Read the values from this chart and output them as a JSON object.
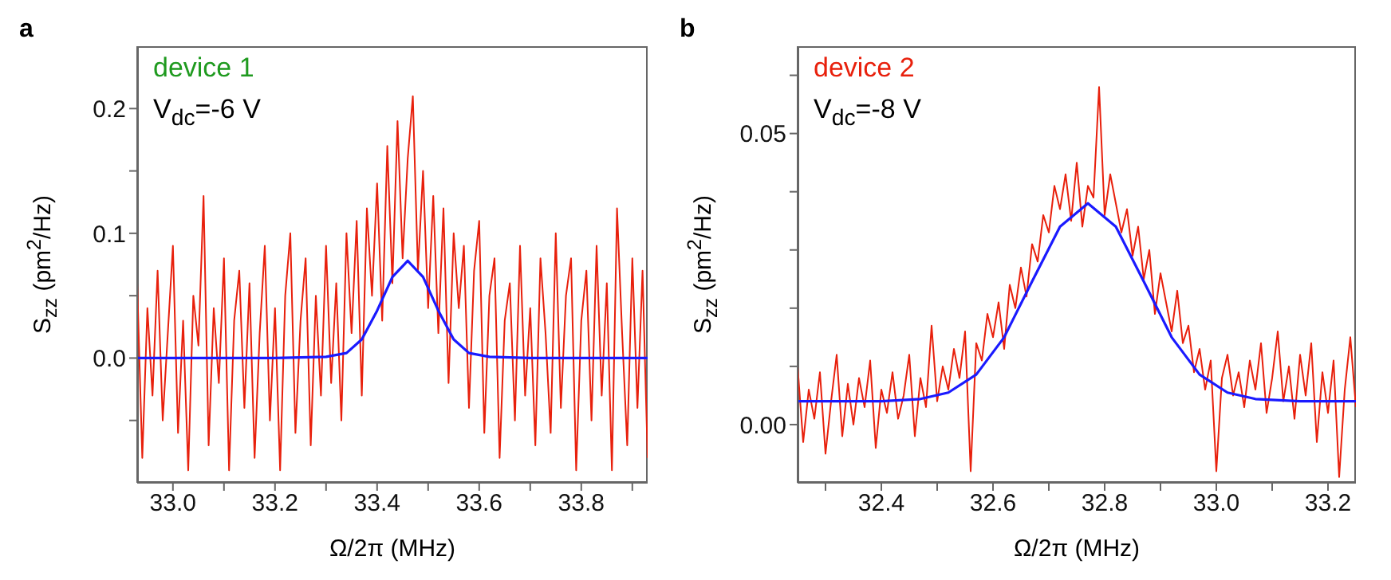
{
  "chart_data": [
    {
      "type": "line",
      "title": "a",
      "xlabel": "Ω/2π (MHz)",
      "ylabel": "S$_{zz}$ (pm$^{2}$/Hz)",
      "annotations": [
        "device 1",
        "V$_{dc}$=-6 V"
      ],
      "xlim": [
        32.93,
        33.93
      ],
      "xticks": [
        {
          "value": 33,
          "label": "33.0"
        },
        {
          "value": 33.1,
          "label": null
        },
        {
          "value": 33.2,
          "label": "33.2"
        },
        {
          "value": 33.3,
          "label": null
        },
        {
          "value": 33.4,
          "label": "33.4"
        },
        {
          "value": 33.5,
          "label": null
        },
        {
          "value": 33.6,
          "label": "33.6"
        },
        {
          "value": 33.7,
          "label": null
        },
        {
          "value": 33.8,
          "label": "33.8"
        },
        {
          "value": 33.9,
          "label": null
        }
      ],
      "ylim": [
        -0.1,
        0.25
      ],
      "yticks": [
        {
          "value": -0.05,
          "label": null
        },
        {
          "value": 0,
          "label": "0.0"
        },
        {
          "value": 0.05,
          "label": null
        },
        {
          "value": 0.1,
          "label": "0.1"
        },
        {
          "value": 0.15,
          "label": null
        },
        {
          "value": 0.2,
          "label": "0.2"
        }
      ],
      "grid": false,
      "marker": "none",
      "line_style": "solid",
      "series": [
        {
          "color": "#e8200c",
          "x": [
            32.93,
            32.94,
            32.95,
            32.96,
            32.97,
            32.98,
            32.99,
            33.0,
            33.01,
            33.02,
            33.03,
            33.04,
            33.05,
            33.06,
            33.07,
            33.08,
            33.09,
            33.1,
            33.11,
            33.12,
            33.13,
            33.14,
            33.15,
            33.16,
            33.17,
            33.18,
            33.19,
            33.2,
            33.21,
            33.22,
            33.23,
            33.24,
            33.25,
            33.26,
            33.27,
            33.28,
            33.29,
            33.3,
            33.31,
            33.32,
            33.33,
            33.34,
            33.35,
            33.36,
            33.37,
            33.38,
            33.39,
            33.4,
            33.41,
            33.42,
            33.43,
            33.44,
            33.45,
            33.46,
            33.47,
            33.48,
            33.49,
            33.5,
            33.51,
            33.52,
            33.53,
            33.54,
            33.55,
            33.56,
            33.57,
            33.58,
            33.59,
            33.6,
            33.61,
            33.62,
            33.63,
            33.64,
            33.65,
            33.66,
            33.67,
            33.68,
            33.69,
            33.7,
            33.71,
            33.72,
            33.73,
            33.74,
            33.75,
            33.76,
            33.77,
            33.78,
            33.79,
            33.8,
            33.81,
            33.82,
            33.83,
            33.84,
            33.85,
            33.86,
            33.87,
            33.88,
            33.89,
            33.9,
            33.91,
            33.92,
            33.93
          ],
          "values": [
            0.06,
            -0.08,
            0.04,
            -0.03,
            0.07,
            -0.05,
            0.02,
            0.09,
            -0.06,
            0.03,
            -0.09,
            0.05,
            0.01,
            0.13,
            -0.07,
            0.04,
            -0.02,
            0.08,
            -0.09,
            0.03,
            0.07,
            -0.04,
            0.06,
            -0.08,
            0.02,
            0.09,
            -0.05,
            0.04,
            -0.09,
            0.05,
            0.1,
            -0.06,
            0.03,
            0.08,
            -0.07,
            0.05,
            -0.03,
            0.09,
            -0.02,
            0.06,
            -0.05,
            0.1,
            0.02,
            0.11,
            -0.03,
            0.12,
            0.05,
            0.14,
            0.03,
            0.17,
            0.06,
            0.19,
            0.08,
            0.16,
            0.21,
            0.07,
            0.15,
            0.04,
            0.13,
            0.02,
            0.12,
            -0.02,
            0.1,
            0.04,
            0.09,
            -0.04,
            0.07,
            0.11,
            -0.06,
            0.05,
            0.08,
            -0.08,
            0.03,
            0.06,
            -0.05,
            0.09,
            -0.03,
            0.04,
            -0.07,
            0.08,
            0.02,
            -0.06,
            0.1,
            -0.04,
            0.05,
            0.08,
            -0.09,
            0.03,
            0.07,
            -0.05,
            0.09,
            -0.03,
            0.06,
            -0.09,
            0.12,
            0.02,
            -0.07,
            0.08,
            -0.04,
            0.07,
            -0.08
          ]
        },
        {
          "color": "#1a1aff",
          "x": [
            32.93,
            33.2,
            33.3,
            33.34,
            33.37,
            33.4,
            33.43,
            33.46,
            33.49,
            33.52,
            33.55,
            33.58,
            33.62,
            33.7,
            33.93
          ],
          "values": [
            0,
            0,
            0.001,
            0.004,
            0.015,
            0.038,
            0.065,
            0.078,
            0.065,
            0.038,
            0.015,
            0.004,
            0.001,
            0,
            0
          ]
        }
      ]
    },
    {
      "type": "line",
      "title": "b",
      "xlabel": "Ω/2π (MHz)",
      "ylabel": "S$_{zz}$ (pm$^{2}$/Hz)",
      "annotations": [
        "device 2",
        "V$_{dc}$=-8 V"
      ],
      "xlim": [
        32.25,
        33.25
      ],
      "xticks": [
        {
          "value": 32.3,
          "label": null
        },
        {
          "value": 32.4,
          "label": "32.4"
        },
        {
          "value": 32.5,
          "label": null
        },
        {
          "value": 32.6,
          "label": "32.6"
        },
        {
          "value": 32.7,
          "label": null
        },
        {
          "value": 32.8,
          "label": "32.8"
        },
        {
          "value": 32.9,
          "label": null
        },
        {
          "value": 33,
          "label": "33.0"
        },
        {
          "value": 33.1,
          "label": null
        },
        {
          "value": 33.2,
          "label": "33.2"
        }
      ],
      "ylim": [
        -0.01,
        0.065
      ],
      "yticks": [
        {
          "value": 0,
          "label": "0.00"
        },
        {
          "value": 0.01,
          "label": null
        },
        {
          "value": 0.02,
          "label": null
        },
        {
          "value": 0.03,
          "label": null
        },
        {
          "value": 0.04,
          "label": null
        },
        {
          "value": 0.05,
          "label": "0.05"
        },
        {
          "value": 0.06,
          "label": null
        }
      ],
      "grid": false,
      "marker": "none",
      "line_style": "solid",
      "series": [
        {
          "color": "#e8200c",
          "x": [
            32.25,
            32.26,
            32.27,
            32.28,
            32.29,
            32.3,
            32.31,
            32.32,
            32.33,
            32.34,
            32.35,
            32.36,
            32.37,
            32.38,
            32.39,
            32.4,
            32.41,
            32.42,
            32.43,
            32.44,
            32.45,
            32.46,
            32.47,
            32.48,
            32.49,
            32.5,
            32.51,
            32.52,
            32.53,
            32.54,
            32.55,
            32.56,
            32.57,
            32.58,
            32.59,
            32.6,
            32.61,
            32.62,
            32.63,
            32.64,
            32.65,
            32.66,
            32.67,
            32.68,
            32.69,
            32.7,
            32.71,
            32.72,
            32.73,
            32.74,
            32.75,
            32.76,
            32.77,
            32.78,
            32.79,
            32.8,
            32.81,
            32.82,
            32.83,
            32.84,
            32.85,
            32.86,
            32.87,
            32.88,
            32.89,
            32.9,
            32.91,
            32.92,
            32.93,
            32.94,
            32.95,
            32.96,
            32.97,
            32.98,
            32.99,
            33.0,
            33.01,
            33.02,
            33.03,
            33.04,
            33.05,
            33.06,
            33.07,
            33.08,
            33.09,
            33.1,
            33.11,
            33.12,
            33.13,
            33.14,
            33.15,
            33.16,
            33.17,
            33.18,
            33.19,
            33.2,
            33.21,
            33.22,
            33.23,
            33.24,
            33.25
          ],
          "values": [
            0.01,
            -0.003,
            0.006,
            0.001,
            0.009,
            -0.005,
            0.004,
            0.012,
            -0.002,
            0.007,
            0.0,
            0.008,
            0.003,
            0.011,
            -0.004,
            0.006,
            0.002,
            0.009,
            0.001,
            0.005,
            0.012,
            -0.002,
            0.008,
            0.003,
            0.017,
            0.004,
            0.01,
            0.006,
            0.013,
            0.008,
            0.016,
            -0.008,
            0.014,
            0.011,
            0.019,
            0.015,
            0.021,
            0.013,
            0.024,
            0.02,
            0.027,
            0.022,
            0.031,
            0.028,
            0.036,
            0.033,
            0.041,
            0.037,
            0.043,
            0.035,
            0.045,
            0.034,
            0.041,
            0.039,
            0.058,
            0.036,
            0.043,
            0.038,
            0.033,
            0.037,
            0.029,
            0.034,
            0.025,
            0.03,
            0.019,
            0.026,
            0.021,
            0.016,
            0.023,
            0.014,
            0.017,
            0.009,
            0.013,
            0.006,
            0.011,
            -0.008,
            0.008,
            0.012,
            0.005,
            0.009,
            0.003,
            0.011,
            0.006,
            0.014,
            0.002,
            0.008,
            0.016,
            0.004,
            0.01,
            0.001,
            0.012,
            0.005,
            0.014,
            -0.003,
            0.009,
            0.002,
            0.011,
            -0.009,
            0.006,
            0.015,
            0.003
          ]
        },
        {
          "color": "#1a1aff",
          "x": [
            32.25,
            32.4,
            32.47,
            32.52,
            32.57,
            32.62,
            32.67,
            32.72,
            32.77,
            32.82,
            32.87,
            32.92,
            32.97,
            33.02,
            33.07,
            33.15,
            33.25
          ],
          "values": [
            0.004,
            0.004,
            0.0044,
            0.0055,
            0.0086,
            0.015,
            0.0246,
            0.034,
            0.038,
            0.034,
            0.0246,
            0.015,
            0.0086,
            0.0055,
            0.0044,
            0.004,
            0.004
          ]
        }
      ]
    }
  ]
}
